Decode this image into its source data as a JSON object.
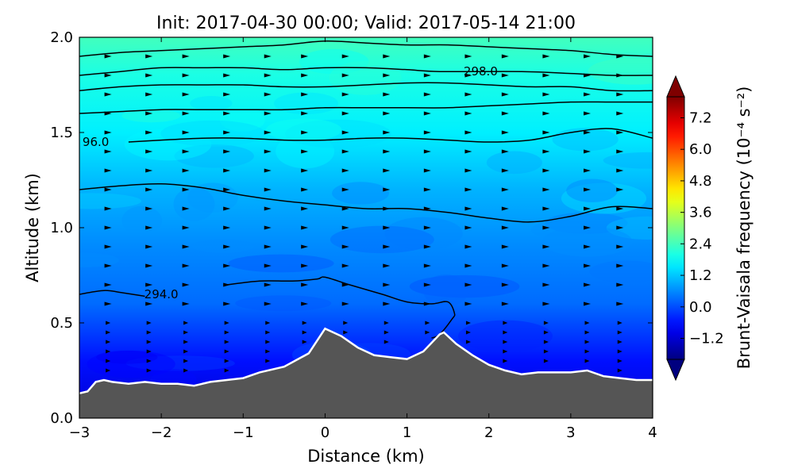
{
  "chart_data": {
    "type": "heatmap",
    "title": "Init: 2017-04-30 00:00; Valid: 2017-05-14 21:00",
    "xlabel": "Distance (km)",
    "ylabel": "Altitude (km)",
    "colorbar_label": "Brunt-Vaisala frequency (10⁻⁴ s⁻²)",
    "xlim": [
      -3,
      4
    ],
    "ylim": [
      0,
      2
    ],
    "x_ticks": [
      -3,
      -2,
      -1,
      0,
      1,
      2,
      3,
      4
    ],
    "x_tick_labels": [
      "−3",
      "−2",
      "−1",
      "0",
      "1",
      "2",
      "3",
      "4"
    ],
    "y_ticks": [
      0,
      0.5,
      1,
      1.5,
      2
    ],
    "y_tick_labels": [
      "0.0",
      "0.5",
      "1.0",
      "1.5",
      "2.0"
    ],
    "colorbar": {
      "range": [
        -2.0,
        8.0
      ],
      "extend": "both",
      "ticks": [
        -1.2,
        0.0,
        1.2,
        2.4,
        3.6,
        4.8,
        6.0,
        7.2
      ],
      "tick_labels": [
        "−1.2",
        "0.0",
        "1.2",
        "2.4",
        "3.6",
        "4.8",
        "6.0",
        "7.2"
      ],
      "colormap": "jet"
    },
    "field_levels": [
      {
        "z": 0.0,
        "value": -1.2
      },
      {
        "z": 0.3,
        "value": -0.6
      },
      {
        "z": 0.6,
        "value": 0.3
      },
      {
        "z": 0.9,
        "value": 0.6
      },
      {
        "z": 1.2,
        "value": 1.0
      },
      {
        "z": 1.5,
        "value": 1.6
      },
      {
        "z": 1.8,
        "value": 2.0
      },
      {
        "z": 2.0,
        "value": 2.4
      }
    ],
    "terrain": {
      "x": [
        -3.0,
        -2.9,
        -2.8,
        -2.7,
        -2.6,
        -2.4,
        -2.2,
        -2.0,
        -1.8,
        -1.6,
        -1.4,
        -1.2,
        -1.0,
        -0.8,
        -0.5,
        -0.2,
        0.0,
        0.2,
        0.4,
        0.6,
        0.8,
        1.0,
        1.2,
        1.4,
        1.45,
        1.6,
        1.8,
        2.0,
        2.2,
        2.4,
        2.6,
        2.8,
        3.0,
        3.2,
        3.4,
        3.6,
        3.8,
        4.0
      ],
      "y": [
        0.13,
        0.14,
        0.19,
        0.2,
        0.19,
        0.18,
        0.19,
        0.18,
        0.18,
        0.17,
        0.19,
        0.2,
        0.21,
        0.24,
        0.27,
        0.34,
        0.47,
        0.43,
        0.37,
        0.33,
        0.32,
        0.31,
        0.35,
        0.44,
        0.45,
        0.39,
        0.33,
        0.28,
        0.25,
        0.23,
        0.24,
        0.24,
        0.24,
        0.25,
        0.22,
        0.21,
        0.2,
        0.2
      ]
    },
    "theta_contours": [
      {
        "label": "294.0",
        "label_x": -2.0,
        "x": [
          -3.0,
          -2.7,
          -2.5,
          -2.2
        ],
        "y": [
          0.65,
          0.67,
          0.66,
          0.64
        ]
      },
      {
        "x": [
          -1.2,
          -0.8,
          -0.4,
          -0.1,
          0.0,
          0.3,
          0.7,
          1.0,
          1.3,
          1.5,
          1.58,
          1.55,
          1.4,
          1.3
        ],
        "y": [
          0.7,
          0.72,
          0.72,
          0.73,
          0.74,
          0.7,
          0.65,
          0.61,
          0.6,
          0.61,
          0.55,
          0.52,
          0.44,
          0.42
        ]
      },
      {
        "x": [
          -3.0,
          -2.5,
          -2.0,
          -1.5,
          -1.0,
          -0.5,
          0.0,
          0.5,
          1.0,
          1.5,
          2.0,
          2.5,
          3.0,
          3.5,
          4.0
        ],
        "y": [
          1.2,
          1.22,
          1.23,
          1.21,
          1.17,
          1.14,
          1.12,
          1.1,
          1.1,
          1.08,
          1.05,
          1.03,
          1.06,
          1.11,
          1.1
        ]
      },
      {
        "label": "96.0",
        "label_x": -2.8,
        "x": [
          -2.4,
          -2.0,
          -1.5,
          -1.0,
          -0.5,
          0.0,
          0.5,
          1.0,
          1.5,
          2.0,
          2.5,
          3.0,
          3.5,
          4.0
        ],
        "y": [
          1.45,
          1.46,
          1.47,
          1.47,
          1.46,
          1.46,
          1.47,
          1.47,
          1.46,
          1.45,
          1.46,
          1.5,
          1.52,
          1.47
        ]
      },
      {
        "x": [
          -3.0,
          -2.5,
          -2.0,
          -1.5,
          -1.0,
          -0.5,
          0.0,
          0.5,
          1.0,
          1.5,
          2.0,
          2.5,
          3.0,
          3.5,
          4.0
        ],
        "y": [
          1.6,
          1.61,
          1.62,
          1.62,
          1.62,
          1.62,
          1.63,
          1.63,
          1.63,
          1.63,
          1.64,
          1.65,
          1.66,
          1.66,
          1.66
        ]
      },
      {
        "x": [
          -3.0,
          -2.5,
          -2.0,
          -1.5,
          -1.0,
          -0.5,
          0.0,
          0.5,
          1.0,
          1.5,
          2.0,
          2.5,
          3.0,
          3.5,
          4.0
        ],
        "y": [
          1.72,
          1.74,
          1.75,
          1.75,
          1.75,
          1.74,
          1.74,
          1.75,
          1.76,
          1.76,
          1.75,
          1.74,
          1.74,
          1.72,
          1.72
        ]
      },
      {
        "label": "298.0",
        "label_x": 1.9,
        "x": [
          -3.0,
          -2.5,
          -2.0,
          -1.5,
          -1.0,
          -0.5,
          0.0,
          0.5,
          1.0,
          1.4,
          2.4,
          3.0,
          3.5,
          4.0
        ],
        "y": [
          1.8,
          1.82,
          1.84,
          1.84,
          1.84,
          1.83,
          1.84,
          1.84,
          1.83,
          1.82,
          1.82,
          1.81,
          1.8,
          1.8
        ]
      },
      {
        "x": [
          -3.0,
          -2.5,
          -2.0,
          -1.5,
          -1.0,
          -0.5,
          0.0,
          0.5,
          1.0,
          1.5,
          2.0,
          2.5,
          3.0,
          3.5,
          4.0
        ],
        "y": [
          1.9,
          1.92,
          1.93,
          1.94,
          1.95,
          1.96,
          1.98,
          1.97,
          1.96,
          1.96,
          1.95,
          1.94,
          1.93,
          1.91,
          1.9
        ]
      }
    ],
    "wind_vector_columns_x": [
      -2.65,
      -2.15,
      -1.7,
      -1.2,
      -0.7,
      -0.25,
      0.25,
      0.75,
      1.25,
      1.75,
      2.2,
      2.7,
      3.2,
      3.6
    ],
    "wind_vector_levels_z": [
      1.9,
      1.8,
      1.7,
      1.6,
      1.5,
      1.4,
      1.3,
      1.2,
      1.1,
      1.0,
      0.9,
      0.8,
      0.7,
      0.6,
      0.5,
      0.45,
      0.4,
      0.35,
      0.3,
      0.25
    ]
  }
}
